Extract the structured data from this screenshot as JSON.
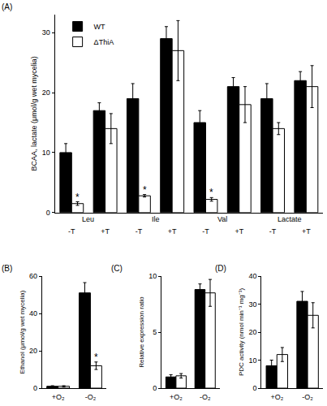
{
  "chart_data": [
    {
      "type": "bar",
      "title": "(A)",
      "y_label": "BCAA, lactate (μmol/g wet mycelia)",
      "categories": [
        "-T",
        "+T",
        "-T",
        "+T",
        "-T",
        "+T",
        "-T",
        "+T"
      ],
      "category_groups": [
        "Leu",
        "Ile",
        "Val",
        "Lactate"
      ],
      "series": [
        {
          "name": "WT",
          "color": "#000000",
          "values": [
            10,
            17,
            19,
            29,
            15,
            21,
            19,
            22
          ],
          "errors": [
            1.5,
            1.3,
            2.5,
            2,
            2,
            1.5,
            2.5,
            1.5
          ]
        },
        {
          "name": "ΔThiA",
          "color": "#ffffff",
          "values": [
            1.5,
            14,
            2.8,
            27,
            2.2,
            18,
            14,
            21
          ],
          "errors": [
            0.3,
            2.5,
            0.2,
            5,
            0.3,
            3,
            1,
            3.5
          ]
        }
      ],
      "annotations": [
        {
          "text": "*",
          "series": "ΔThiA",
          "index": 0
        },
        {
          "text": "*",
          "series": "ΔThiA",
          "index": 2
        },
        {
          "text": "*",
          "series": "ΔThiA",
          "index": 4
        }
      ],
      "ylim": [
        0,
        33
      ],
      "yticks": [
        0,
        10,
        20,
        30
      ],
      "legend": "upper left",
      "grid": false
    },
    {
      "type": "bar",
      "title": "(B)",
      "y_label": "Ethanol (μmol/g wet mycelia)",
      "categories": [
        "+O₂",
        "-O₂"
      ],
      "series": [
        {
          "name": "WT",
          "color": "#000000",
          "values": [
            1,
            51
          ],
          "errors": [
            0.3,
            5.5
          ]
        },
        {
          "name": "ΔThiA",
          "color": "#ffffff",
          "values": [
            1,
            12
          ],
          "errors": [
            0.3,
            2
          ]
        }
      ],
      "annotations": [
        {
          "text": "*",
          "series": "ΔThiA",
          "index": 1
        }
      ],
      "ylim": [
        0,
        60
      ],
      "yticks": [
        0,
        20,
        40,
        60
      ],
      "grid": false
    },
    {
      "type": "bar",
      "title": "(C)",
      "y_label": "Relative expression ratio",
      "categories": [
        "+O₂",
        "-O₂"
      ],
      "series": [
        {
          "name": "WT",
          "color": "#000000",
          "values": [
            1,
            8.8
          ],
          "errors": [
            0.2,
            0.5
          ]
        },
        {
          "name": "ΔThiA",
          "color": "#ffffff",
          "values": [
            1.1,
            8.5
          ],
          "errors": [
            0.2,
            1.2
          ]
        }
      ],
      "ylim": [
        0,
        10
      ],
      "yticks": [
        0,
        5,
        10
      ],
      "grid": false
    },
    {
      "type": "bar",
      "title": "(D)",
      "y_label": "PDC activity (nmol min⁻¹ mg⁻¹)",
      "categories": [
        "+O₂",
        "-O₂"
      ],
      "series": [
        {
          "name": "WT",
          "color": "#000000",
          "values": [
            8,
            31
          ],
          "errors": [
            2,
            3.5
          ]
        },
        {
          "name": "ΔThiA",
          "color": "#ffffff",
          "values": [
            12,
            26
          ],
          "errors": [
            2.5,
            4.5
          ]
        }
      ],
      "ylim": [
        0,
        40
      ],
      "yticks": [
        0,
        10,
        20,
        30,
        40
      ],
      "grid": false
    }
  ]
}
